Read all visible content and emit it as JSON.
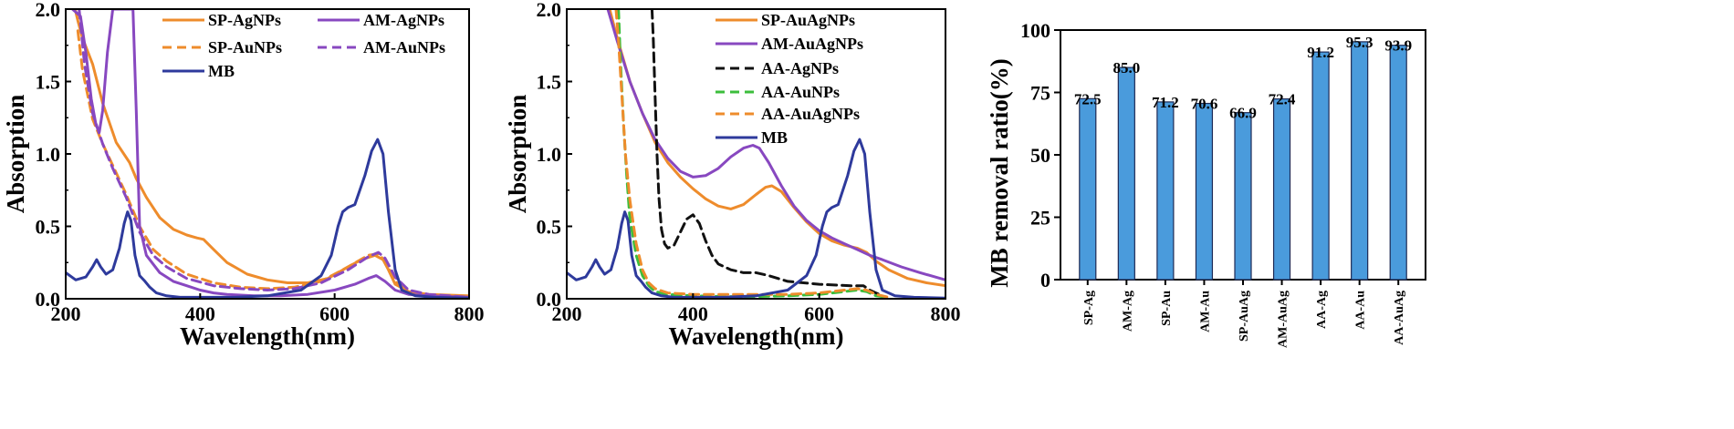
{
  "chart_data": [
    {
      "id": "a",
      "type": "line",
      "xlabel": "Wavelength(nm)",
      "ylabel": "Absorption",
      "xlim": [
        200,
        800
      ],
      "ylim": [
        0,
        2.0
      ],
      "xticks": [
        200,
        400,
        600,
        800
      ],
      "yticks": [
        0.0,
        0.5,
        1.0,
        1.5,
        2.0
      ],
      "ytick_labels": [
        "0.0",
        "0.5",
        "1.0",
        "1.5",
        "2.0"
      ],
      "legend_position": "top-right",
      "series": [
        {
          "name": "SP-AgNPs",
          "color": "#EE8C2C",
          "dash": "solid",
          "x": [
            214,
            218,
            225,
            240,
            255,
            275,
            295,
            305,
            320,
            340,
            360,
            380,
            395,
            405,
            420,
            440,
            470,
            500,
            530,
            560,
            590,
            620,
            640,
            660,
            672,
            680,
            690,
            710,
            740,
            770,
            800
          ],
          "y": [
            2.0,
            1.92,
            1.8,
            1.62,
            1.35,
            1.08,
            0.94,
            0.83,
            0.7,
            0.56,
            0.48,
            0.44,
            0.42,
            0.41,
            0.34,
            0.25,
            0.17,
            0.13,
            0.11,
            0.11,
            0.14,
            0.22,
            0.27,
            0.3,
            0.27,
            0.2,
            0.1,
            0.05,
            0.03,
            0.025,
            0.02
          ]
        },
        {
          "name": "SP-AuNPs",
          "color": "#EE8C2C",
          "dash": "dashed",
          "x": [
            218,
            225,
            240,
            255,
            270,
            290,
            310,
            330,
            350,
            380,
            420,
            460,
            500,
            540,
            580,
            620,
            650,
            665,
            675,
            690,
            710,
            740,
            770,
            800
          ],
          "y": [
            1.85,
            1.58,
            1.24,
            1.07,
            0.92,
            0.72,
            0.5,
            0.34,
            0.26,
            0.17,
            0.11,
            0.08,
            0.07,
            0.08,
            0.12,
            0.22,
            0.3,
            0.31,
            0.26,
            0.12,
            0.04,
            0.02,
            0.015,
            0.01
          ]
        },
        {
          "name": "AM-AgNPs",
          "color": "#8848C0",
          "dash": "solid",
          "x": [
            210,
            222,
            230,
            238,
            245,
            250,
            255,
            262,
            270,
            278,
            285,
            292,
            300,
            305,
            310,
            320,
            340,
            360,
            380,
            400,
            420,
            440,
            480,
            520,
            560,
            600,
            630,
            650,
            662,
            675,
            690,
            710,
            740,
            770,
            800
          ],
          "y": [
            2.0,
            1.95,
            1.7,
            1.38,
            1.2,
            1.15,
            1.3,
            1.7,
            2.0,
            2.0,
            2.0,
            2.0,
            2.0,
            1.3,
            0.5,
            0.3,
            0.18,
            0.12,
            0.09,
            0.06,
            0.04,
            0.03,
            0.02,
            0.02,
            0.03,
            0.06,
            0.1,
            0.14,
            0.16,
            0.12,
            0.06,
            0.03,
            0.02,
            0.015,
            0.01
          ]
        },
        {
          "name": "AM-AuNPs",
          "color": "#8848C0",
          "dash": "dashed",
          "x": [
            220,
            228,
            240,
            255,
            270,
            290,
            310,
            330,
            350,
            380,
            420,
            460,
            500,
            540,
            580,
            620,
            650,
            665,
            675,
            690,
            710,
            740,
            770,
            800
          ],
          "y": [
            2.0,
            1.62,
            1.28,
            1.07,
            0.9,
            0.7,
            0.46,
            0.3,
            0.22,
            0.14,
            0.09,
            0.07,
            0.06,
            0.07,
            0.11,
            0.2,
            0.29,
            0.32,
            0.28,
            0.15,
            0.06,
            0.03,
            0.02,
            0.01
          ]
        },
        {
          "name": "MB",
          "color": "#2E3A9C",
          "dash": "solid",
          "x": [
            200,
            215,
            230,
            240,
            246,
            252,
            260,
            270,
            280,
            287,
            292,
            297,
            303,
            310,
            318,
            325,
            335,
            350,
            370,
            400,
            450,
            500,
            550,
            580,
            595,
            605,
            612,
            620,
            630,
            645,
            655,
            664,
            672,
            680,
            690,
            700,
            720,
            750,
            800
          ],
          "y": [
            0.18,
            0.13,
            0.15,
            0.22,
            0.27,
            0.22,
            0.17,
            0.2,
            0.35,
            0.52,
            0.6,
            0.54,
            0.3,
            0.16,
            0.12,
            0.08,
            0.04,
            0.02,
            0.01,
            0.01,
            0.01,
            0.02,
            0.06,
            0.16,
            0.3,
            0.5,
            0.6,
            0.63,
            0.65,
            0.85,
            1.02,
            1.1,
            1.0,
            0.6,
            0.2,
            0.06,
            0.02,
            0.01,
            0.005
          ]
        }
      ]
    },
    {
      "id": "b",
      "type": "line",
      "xlabel": "Wavelength(nm)",
      "ylabel": "Absorption",
      "xlim": [
        200,
        800
      ],
      "ylim": [
        0,
        2.0
      ],
      "xticks": [
        200,
        400,
        600,
        800
      ],
      "yticks": [
        0.0,
        0.5,
        1.0,
        1.5,
        2.0
      ],
      "ytick_labels": [
        "0.0",
        "0.5",
        "1.0",
        "1.5",
        "2.0"
      ],
      "legend_position": "top-right",
      "series": [
        {
          "name": "SP-AuAgNPs",
          "color": "#EE8C2C",
          "dash": "solid",
          "x": [
            268,
            280,
            300,
            320,
            340,
            360,
            380,
            400,
            420,
            440,
            460,
            480,
            500,
            515,
            525,
            540,
            560,
            580,
            600,
            620,
            640,
            660,
            675,
            690,
            710,
            740,
            770,
            800
          ],
          "y": [
            2.0,
            1.8,
            1.5,
            1.28,
            1.08,
            0.94,
            0.84,
            0.76,
            0.69,
            0.64,
            0.62,
            0.65,
            0.72,
            0.77,
            0.78,
            0.74,
            0.63,
            0.53,
            0.45,
            0.4,
            0.37,
            0.35,
            0.32,
            0.26,
            0.2,
            0.14,
            0.11,
            0.09
          ]
        },
        {
          "name": "AM-AuAgNPs",
          "color": "#8848C0",
          "dash": "solid",
          "x": [
            265,
            280,
            300,
            320,
            340,
            360,
            380,
            400,
            420,
            440,
            460,
            480,
            495,
            505,
            520,
            540,
            560,
            580,
            600,
            620,
            640,
            660,
            680,
            700,
            730,
            760,
            800
          ],
          "y": [
            2.0,
            1.78,
            1.5,
            1.28,
            1.1,
            0.97,
            0.88,
            0.84,
            0.85,
            0.9,
            0.98,
            1.04,
            1.06,
            1.04,
            0.94,
            0.78,
            0.64,
            0.54,
            0.47,
            0.42,
            0.38,
            0.34,
            0.3,
            0.27,
            0.22,
            0.18,
            0.13
          ]
        },
        {
          "name": "AA-AgNPs",
          "color": "#111111",
          "dash": "dashed",
          "x": [
            335,
            337,
            340,
            343,
            346,
            350,
            355,
            360,
            370,
            380,
            390,
            400,
            410,
            420,
            430,
            440,
            460,
            480,
            500,
            520,
            550,
            600,
            650,
            670,
            680,
            700
          ],
          "y": [
            2.0,
            1.8,
            1.4,
            1.0,
            0.7,
            0.48,
            0.38,
            0.35,
            0.37,
            0.46,
            0.55,
            0.58,
            0.52,
            0.4,
            0.3,
            0.24,
            0.2,
            0.18,
            0.18,
            0.16,
            0.12,
            0.1,
            0.09,
            0.09,
            0.06,
            0.02
          ]
        },
        {
          "name": "AA-AuNPs",
          "color": "#3CBE3C",
          "dash": "dashed",
          "x": [
            282,
            285,
            290,
            295,
            300,
            310,
            320,
            330,
            340,
            360,
            400,
            450,
            500,
            550,
            600,
            640,
            660,
            675,
            690,
            710
          ],
          "y": [
            2.0,
            1.65,
            1.2,
            0.85,
            0.55,
            0.3,
            0.16,
            0.09,
            0.05,
            0.03,
            0.02,
            0.015,
            0.015,
            0.02,
            0.03,
            0.05,
            0.06,
            0.05,
            0.02,
            0.01
          ]
        },
        {
          "name": "AA-AuAgNPs",
          "color": "#EE8C2C",
          "dash": "dashed",
          "x": [
            278,
            282,
            288,
            293,
            300,
            310,
            320,
            330,
            340,
            360,
            400,
            450,
            500,
            550,
            600,
            640,
            660,
            675,
            690,
            710
          ],
          "y": [
            2.0,
            1.78,
            1.35,
            1.0,
            0.68,
            0.38,
            0.2,
            0.11,
            0.07,
            0.04,
            0.03,
            0.03,
            0.03,
            0.03,
            0.04,
            0.06,
            0.07,
            0.06,
            0.03,
            0.01
          ]
        },
        {
          "name": "MB",
          "color": "#2E3A9C",
          "dash": "solid",
          "x": [
            200,
            215,
            230,
            240,
            246,
            252,
            260,
            270,
            280,
            287,
            292,
            297,
            303,
            310,
            318,
            325,
            335,
            350,
            370,
            400,
            450,
            500,
            550,
            580,
            595,
            605,
            612,
            620,
            630,
            645,
            655,
            664,
            672,
            680,
            690,
            700,
            720,
            750,
            800
          ],
          "y": [
            0.18,
            0.13,
            0.15,
            0.22,
            0.27,
            0.22,
            0.17,
            0.2,
            0.35,
            0.52,
            0.6,
            0.54,
            0.3,
            0.16,
            0.12,
            0.08,
            0.04,
            0.02,
            0.01,
            0.01,
            0.01,
            0.02,
            0.06,
            0.16,
            0.3,
            0.5,
            0.6,
            0.63,
            0.65,
            0.85,
            1.02,
            1.1,
            1.0,
            0.6,
            0.2,
            0.06,
            0.02,
            0.01,
            0.005
          ]
        }
      ]
    },
    {
      "id": "c",
      "type": "bar",
      "ylabel": "MB removal ratio(%)",
      "ylim": [
        0,
        100
      ],
      "yticks": [
        0,
        25,
        50,
        75,
        100
      ],
      "bar_color": "#4A9BDC",
      "categories": [
        "SP-Ag",
        "AM-Ag",
        "SP-Au",
        "AM-Au",
        "SP-AuAg",
        "AM-AuAg",
        "AA-Ag",
        "AA-Au",
        "AA-AuAg"
      ],
      "values": [
        72.5,
        85.0,
        71.2,
        70.6,
        66.9,
        72.4,
        91.2,
        95.3,
        93.9
      ],
      "value_labels": [
        "72.5",
        "85.0",
        "71.2",
        "70.6",
        "66.9",
        "72.4",
        "91.2",
        "95.3",
        "93.9"
      ]
    }
  ]
}
